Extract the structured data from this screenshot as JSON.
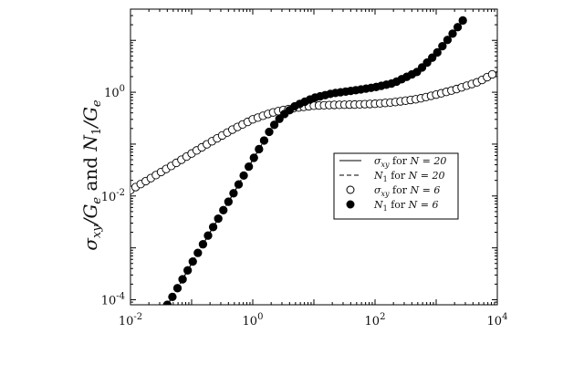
{
  "chart_data": {
    "type": "line",
    "title": "",
    "xlabel": "",
    "ylabel": "σxy/Ge and N1/Ge",
    "x_scale": "log",
    "y_scale": "log",
    "xlim": [
      0.01,
      10000
    ],
    "ylim": [
      8e-05,
      40
    ],
    "grid": false,
    "legend_placement": "center-right",
    "x_tick_labels": [
      {
        "value": 0.01,
        "base": "10",
        "exp": "-2"
      },
      {
        "value": 1,
        "base": "10",
        "exp": "0"
      },
      {
        "value": 100,
        "base": "10",
        "exp": "2"
      },
      {
        "value": 10000,
        "base": "10",
        "exp": "4"
      }
    ],
    "y_tick_labels": [
      {
        "value": 0.0001,
        "base": "10",
        "exp": "-4"
      },
      {
        "value": 0.01,
        "base": "10",
        "exp": "-2"
      },
      {
        "value": 1,
        "base": "10",
        "exp": "0"
      }
    ],
    "series": [
      {
        "name": "σxy for N = 20",
        "style": "solid-line",
        "color": "#000000",
        "x": [
          0.01,
          0.02,
          0.05,
          0.1,
          0.2,
          0.5,
          1,
          2,
          3,
          5,
          10,
          20,
          50,
          100,
          200,
          500,
          1000,
          2000,
          5000,
          10000
        ],
        "y": [
          0.013,
          0.021,
          0.04,
          0.066,
          0.108,
          0.2,
          0.3,
          0.4,
          0.45,
          0.5,
          0.55,
          0.57,
          0.58,
          0.6,
          0.64,
          0.74,
          0.9,
          1.12,
          1.6,
          2.5
        ]
      },
      {
        "name": "N1 for N = 20",
        "style": "dashed-line",
        "color": "#000000",
        "x": [
          0.04,
          0.05,
          0.1,
          0.2,
          0.5,
          1,
          2,
          3,
          5,
          10,
          20,
          50,
          100,
          200,
          500,
          1000,
          2000,
          3000
        ],
        "y": [
          8e-05,
          0.00012,
          0.0005,
          0.002,
          0.012,
          0.05,
          0.2,
          0.35,
          0.55,
          0.78,
          0.95,
          1.1,
          1.25,
          1.5,
          2.5,
          5.5,
          15,
          28
        ]
      },
      {
        "name": "σxy for N = 6",
        "style": "open-circles",
        "color": "#000000",
        "x": [
          0.01,
          0.02,
          0.05,
          0.1,
          0.2,
          0.5,
          1,
          2,
          3,
          5,
          10,
          20,
          50,
          100,
          200,
          500,
          1000,
          2000,
          5000,
          10000
        ],
        "y": [
          0.013,
          0.021,
          0.04,
          0.066,
          0.108,
          0.2,
          0.3,
          0.4,
          0.45,
          0.5,
          0.55,
          0.57,
          0.58,
          0.6,
          0.64,
          0.74,
          0.9,
          1.12,
          1.6,
          2.5
        ]
      },
      {
        "name": "N1 for N = 6",
        "style": "filled-circles",
        "color": "#000000",
        "x": [
          0.04,
          0.05,
          0.1,
          0.2,
          0.5,
          1,
          2,
          3,
          5,
          10,
          20,
          50,
          100,
          200,
          500,
          1000,
          2000,
          3000
        ],
        "y": [
          8e-05,
          0.00012,
          0.0005,
          0.002,
          0.012,
          0.05,
          0.2,
          0.35,
          0.55,
          0.78,
          0.95,
          1.1,
          1.25,
          1.5,
          2.5,
          5.5,
          15,
          28
        ]
      }
    ],
    "legend": [
      {
        "sym": "σ",
        "sub": "xy",
        "text": " for ",
        "n": "N = 20"
      },
      {
        "sym": "N",
        "sub": "1",
        "text": " for ",
        "n": "N = 20"
      },
      {
        "sym": "σ",
        "sub": "xy",
        "text": " for ",
        "n": "N = 6"
      },
      {
        "sym": "N",
        "sub": "1",
        "text": " for ",
        "n": "N = 6"
      }
    ]
  },
  "ylabel_parts": {
    "sym1": "σ",
    "sub1": "xy",
    "div1": "/G",
    "sub2": "e",
    "mid": " and ",
    "sym2": "N",
    "sub3": "1",
    "div2": "/G",
    "sub4": "e"
  }
}
